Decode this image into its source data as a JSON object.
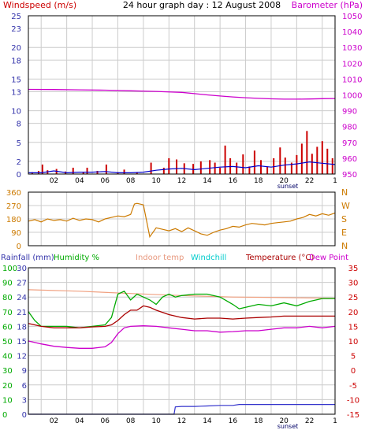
{
  "colors": {
    "windspeed": "#cc0000",
    "wind_avg": "#0000cc",
    "barometer": "#cc00cc",
    "direction": "#cc7a00",
    "rainfall": "#3333cc",
    "humidity": "#00aa00",
    "indoor_temp": "#f0a080",
    "windchill": "#00cccc",
    "temperature": "#aa0000",
    "dew_point": "#cc00cc",
    "grid": "#cccccc",
    "axis_blue": "#3333aa",
    "axis_green": "#00aa00",
    "axis_orange": "#cc7a00",
    "axis_salmon": "#e08060",
    "axis_red": "#cc0000",
    "axis_magenta": "#cc00cc"
  },
  "chart_data": [
    {
      "type": "bar",
      "title": "24 hour graph day : 12 August 2008",
      "left_label": "Windspeed (m/s)",
      "right_label": "Barometer (hPa)",
      "x_ticks": [
        "02",
        "04",
        "06",
        "08",
        "10",
        "12",
        "14",
        "16",
        "18",
        "20",
        "22",
        "1"
      ],
      "x_note": "sunset",
      "left_ticks": [
        0,
        2,
        5,
        8,
        10,
        13,
        15,
        18,
        20,
        23,
        25
      ],
      "left_range": [
        0,
        25
      ],
      "right_ticks": [
        950,
        960,
        970,
        980,
        990,
        1000,
        1010,
        1020,
        1030,
        1040,
        1050
      ],
      "right_range": [
        950,
        1050
      ],
      "barometer": {
        "hours": [
          0,
          2,
          4,
          6,
          8,
          10,
          12,
          13,
          14,
          15,
          16,
          17,
          18,
          19,
          20,
          21,
          22,
          23,
          24
        ],
        "values": [
          1003.5,
          1003.4,
          1003.2,
          1003,
          1002.6,
          1002.2,
          1001.6,
          1000.8,
          1000,
          999.3,
          998.7,
          998.2,
          997.8,
          997.5,
          997.3,
          997.3,
          997.4,
          997.6,
          997.7
        ]
      },
      "wind_gusts": {
        "hours": [
          0.3,
          0.8,
          1.1,
          1.5,
          2.2,
          2.9,
          3.5,
          4.3,
          4.6,
          5.4,
          6.1,
          7.0,
          7.5,
          8.5,
          9.6,
          10.6,
          11.0,
          11.6,
          12.2,
          12.9,
          13.5,
          14.2,
          14.6,
          15.0,
          15.4,
          15.8,
          16.3,
          16.8,
          17.3,
          17.7,
          18.2,
          18.7,
          19.2,
          19.7,
          20.1,
          20.6,
          21.0,
          21.4,
          21.8,
          22.2,
          22.6,
          23.0,
          23.4,
          23.8
        ],
        "values": [
          0.3,
          0.5,
          1.5,
          0.6,
          0.8,
          0.4,
          1.0,
          0.3,
          1.0,
          0.5,
          1.5,
          0.3,
          0.7,
          0.3,
          1.8,
          1.0,
          2.5,
          2.3,
          1.7,
          1.6,
          2.0,
          2.2,
          1.8,
          1.0,
          4.5,
          2.5,
          1.8,
          3.1,
          1.2,
          3.7,
          2.2,
          1.2,
          2.5,
          4.2,
          2.6,
          1.8,
          3.0,
          4.8,
          6.8,
          3.2,
          4.3,
          5.2,
          4.0,
          2.5
        ]
      },
      "wind_average": {
        "hours": [
          0,
          1,
          2,
          3,
          4,
          5,
          6,
          7,
          8,
          9,
          10,
          11,
          12,
          13,
          14,
          15,
          16,
          17,
          18,
          19,
          20,
          21,
          22,
          23,
          24
        ],
        "values": [
          0.2,
          0.2,
          0.5,
          0.2,
          0.3,
          0.3,
          0.4,
          0.2,
          0.2,
          0.3,
          0.6,
          0.8,
          0.9,
          0.7,
          0.9,
          1.1,
          1.2,
          1.0,
          1.3,
          1.1,
          1.4,
          1.6,
          1.9,
          1.7,
          1.5
        ]
      }
    },
    {
      "type": "line",
      "series_name": "Wind direction",
      "left_ticks": [
        0,
        90,
        180,
        270,
        360
      ],
      "left_range": [
        0,
        360
      ],
      "right_ticks": [
        "N",
        "W",
        "S",
        "E",
        "N"
      ],
      "hours": [
        0,
        0.5,
        1,
        1.5,
        2,
        2.5,
        3,
        3.5,
        4,
        4.5,
        5,
        5.5,
        6,
        6.5,
        7,
        7.5,
        8,
        8.3,
        8.5,
        9.0,
        9.5,
        10,
        10.5,
        11,
        11.5,
        12,
        12.5,
        13,
        13.5,
        14,
        14.5,
        15,
        15.5,
        16,
        16.5,
        17,
        17.5,
        18,
        18.5,
        19,
        19.5,
        20,
        20.5,
        21,
        21.5,
        22,
        22.5,
        23,
        23.5,
        24
      ],
      "values": [
        165,
        175,
        160,
        180,
        170,
        175,
        165,
        185,
        170,
        180,
        175,
        160,
        180,
        190,
        200,
        195,
        210,
        280,
        285,
        275,
        60,
        120,
        110,
        100,
        115,
        95,
        120,
        100,
        80,
        70,
        90,
        105,
        115,
        130,
        125,
        140,
        150,
        145,
        140,
        150,
        155,
        160,
        165,
        180,
        190,
        210,
        200,
        215,
        205,
        220
      ]
    },
    {
      "type": "line",
      "left_label": "Rainfall (mm)",
      "left_label2": "Humidity %",
      "center_labels": [
        "Indoor temp",
        "Windchill",
        "Temperature (°C)",
        "Dew Point"
      ],
      "x_ticks": [
        "02",
        "04",
        "06",
        "08",
        "10",
        "12",
        "14",
        "16",
        "18",
        "20",
        "22",
        "1"
      ],
      "x_note": "sunset",
      "rain_ticks": [
        "0",
        "3",
        "6",
        "9",
        "12",
        "15",
        "18",
        "21",
        "24",
        "27",
        "30"
      ],
      "rain_range": [
        0,
        30
      ],
      "humidity_ticks": [
        "0",
        "10",
        "20",
        "30",
        "40",
        "50",
        "60",
        "70",
        "80",
        "90",
        "100"
      ],
      "temp_ticks": [
        "-15",
        "-10",
        "-5",
        "0",
        "5",
        "10",
        "15",
        "20",
        "25",
        "30",
        "35"
      ],
      "temp_range": [
        -15,
        35
      ],
      "humidity": {
        "hours": [
          0,
          0.5,
          1,
          2,
          3,
          4,
          5,
          6,
          6.5,
          7,
          7.5,
          8,
          8.5,
          9,
          9.5,
          10,
          10.5,
          11,
          11.5,
          12,
          13,
          14,
          15,
          16,
          16.5,
          17,
          18,
          19,
          20,
          21,
          22,
          23,
          24
        ],
        "values": [
          70,
          64,
          60,
          60,
          60,
          59,
          60,
          61,
          66,
          82,
          84,
          78,
          82,
          80,
          78,
          75,
          80,
          82,
          80,
          81,
          82,
          82,
          80,
          75,
          72,
          73,
          75,
          74,
          76,
          74,
          77,
          79,
          79
        ]
      },
      "indoor_temp": {
        "hours": [
          0,
          4,
          8,
          12,
          16,
          20,
          24
        ],
        "values": [
          27.5,
          27,
          26.2,
          25.5,
          25.0,
          24.8,
          24.6
        ]
      },
      "temperature": {
        "hours": [
          0,
          1,
          2,
          3,
          4,
          5,
          6,
          6.5,
          7,
          7.5,
          8,
          8.5,
          9,
          9.5,
          10,
          11,
          12,
          13,
          14,
          15,
          16,
          17,
          18,
          19,
          20,
          21,
          22,
          23,
          24
        ],
        "values": [
          16,
          15,
          14.5,
          14.5,
          14.5,
          14.8,
          15,
          15.5,
          17,
          19,
          20.5,
          20.5,
          22,
          21.5,
          20.5,
          19,
          18,
          17.5,
          17.8,
          17.8,
          17.5,
          17.8,
          18,
          18.2,
          18.5,
          18.5,
          18.5,
          18.5,
          18.5
        ]
      },
      "dew_point": {
        "hours": [
          0,
          1,
          2,
          3,
          4,
          5,
          6,
          6.5,
          7,
          7.5,
          8,
          9,
          10,
          11,
          12,
          13,
          14,
          15,
          16,
          17,
          18,
          19,
          20,
          21,
          22,
          23,
          24
        ],
        "values": [
          10,
          9,
          8.2,
          7.8,
          7.5,
          7.5,
          8,
          9.5,
          12.5,
          14.5,
          15,
          15.2,
          15,
          14.5,
          14,
          13.5,
          13.5,
          13.0,
          13.2,
          13.5,
          13.5,
          14.0,
          14.5,
          14.5,
          15,
          14.5,
          15
        ]
      },
      "rainfall": {
        "hours": [
          0,
          11.4,
          11.5,
          12,
          13,
          14,
          15,
          16,
          16.5,
          24
        ],
        "values": [
          0,
          0,
          1.5,
          1.6,
          1.6,
          1.7,
          1.8,
          1.8,
          2.0,
          2.0
        ]
      }
    }
  ]
}
